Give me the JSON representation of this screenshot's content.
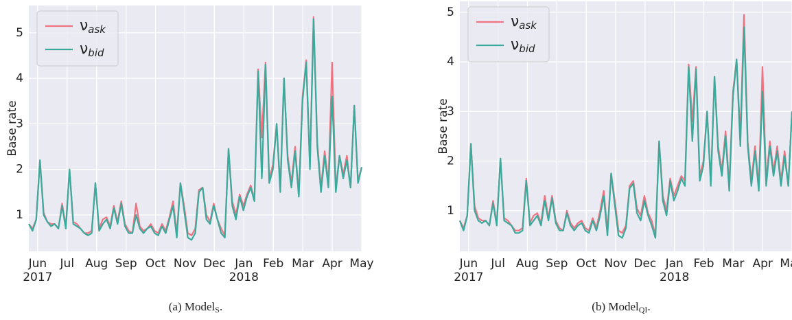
{
  "chart_data": [
    {
      "type": "line",
      "ylabel": "Base rate",
      "caption": "(a) Model",
      "caption_sub": "S",
      "caption_end": ".",
      "xlim": [
        -0.3,
        11.0
      ],
      "xticks": [
        {
          "value": 0,
          "label": "Jun"
        },
        {
          "value": 1,
          "label": "Jul"
        },
        {
          "value": 2,
          "label": "Aug"
        },
        {
          "value": 3,
          "label": "Sep"
        },
        {
          "value": 4,
          "label": "Oct"
        },
        {
          "value": 5,
          "label": "Nov"
        },
        {
          "value": 6,
          "label": "Dec"
        },
        {
          "value": 7,
          "label": "Jan"
        },
        {
          "value": 8,
          "label": "Feb"
        },
        {
          "value": 9,
          "label": "Mar"
        },
        {
          "value": 10,
          "label": "Apr"
        },
        {
          "value": 11,
          "label": "May"
        }
      ],
      "year_labels": [
        {
          "value": 0,
          "label": "2017"
        },
        {
          "value": 7,
          "label": "2018"
        }
      ],
      "ylim": [
        0.2,
        5.6
      ],
      "yticks": [
        1,
        2,
        3,
        4,
        5
      ],
      "grid": true,
      "legend": "upper left",
      "series": [
        {
          "name": "ν",
          "sub": "ask",
          "color": "#f07382",
          "values": [
            0.8,
            0.7,
            0.9,
            2.2,
            1.05,
            0.85,
            0.8,
            0.8,
            0.7,
            1.25,
            0.75,
            2.0,
            0.85,
            0.8,
            0.7,
            0.6,
            0.6,
            0.65,
            1.7,
            0.7,
            0.9,
            0.95,
            0.75,
            1.2,
            0.85,
            1.3,
            0.8,
            0.65,
            0.6,
            1.25,
            0.75,
            0.65,
            0.7,
            0.8,
            0.65,
            0.6,
            0.8,
            0.65,
            0.95,
            1.3,
            0.6,
            1.7,
            1.2,
            0.6,
            0.55,
            0.7,
            1.55,
            1.6,
            1.0,
            0.85,
            1.25,
            0.9,
            0.7,
            0.55,
            2.45,
            1.3,
            1.0,
            1.45,
            1.2,
            1.45,
            1.65,
            1.35,
            4.2,
            2.7,
            4.35,
            1.8,
            2.1,
            3.0,
            1.6,
            4.0,
            2.3,
            1.7,
            2.5,
            1.45,
            3.6,
            4.4,
            2.1,
            5.35,
            2.6,
            1.6,
            2.4,
            1.7,
            4.35,
            1.6,
            2.3,
            1.9,
            2.3,
            1.6,
            3.4,
            1.75,
            2.05
          ]
        },
        {
          "name": "ν",
          "sub": "bid",
          "color": "#3aaa9c",
          "values": [
            0.8,
            0.65,
            0.9,
            2.2,
            1.0,
            0.85,
            0.75,
            0.8,
            0.7,
            1.2,
            0.7,
            2.0,
            0.8,
            0.75,
            0.7,
            0.6,
            0.55,
            0.6,
            1.7,
            0.65,
            0.8,
            0.9,
            0.7,
            1.15,
            0.8,
            1.25,
            0.75,
            0.6,
            0.6,
            1.0,
            0.7,
            0.6,
            0.7,
            0.75,
            0.6,
            0.55,
            0.75,
            0.6,
            0.9,
            1.2,
            0.5,
            1.7,
            1.1,
            0.5,
            0.45,
            0.6,
            1.5,
            1.6,
            0.9,
            0.8,
            1.2,
            0.9,
            0.6,
            0.5,
            2.45,
            1.2,
            0.9,
            1.4,
            1.1,
            1.4,
            1.6,
            1.3,
            4.15,
            1.8,
            4.3,
            1.7,
            2.0,
            3.0,
            1.5,
            4.0,
            2.2,
            1.6,
            2.4,
            1.4,
            3.5,
            4.35,
            2.0,
            5.3,
            2.5,
            1.5,
            2.3,
            1.6,
            3.6,
            1.5,
            2.3,
            1.8,
            2.2,
            1.6,
            3.4,
            1.7,
            2.05
          ]
        }
      ]
    },
    {
      "type": "line",
      "ylabel": "Base rate",
      "caption": "(b) Model",
      "caption_sub": "QI",
      "caption_end": ".",
      "xlim": [
        -0.3,
        11.0
      ],
      "xticks": [
        {
          "value": 0,
          "label": "Jun"
        },
        {
          "value": 1,
          "label": "Jul"
        },
        {
          "value": 2,
          "label": "Aug"
        },
        {
          "value": 3,
          "label": "Sep"
        },
        {
          "value": 4,
          "label": "Oct"
        },
        {
          "value": 5,
          "label": "Nov"
        },
        {
          "value": 6,
          "label": "Dec"
        },
        {
          "value": 7,
          "label": "Jan"
        },
        {
          "value": 8,
          "label": "Feb"
        },
        {
          "value": 9,
          "label": "Mar"
        },
        {
          "value": 10,
          "label": "Apr"
        },
        {
          "value": 11,
          "label": "May"
        }
      ],
      "year_labels": [
        {
          "value": 0,
          "label": "2017"
        },
        {
          "value": 7,
          "label": "2018"
        }
      ],
      "ylim": [
        0.18,
        5.22
      ],
      "yticks": [
        1,
        2,
        3,
        4,
        5
      ],
      "grid": true,
      "legend": "upper left",
      "series": [
        {
          "name": "ν",
          "sub": "ask",
          "color": "#f07382",
          "values": [
            0.8,
            0.65,
            0.9,
            2.35,
            1.1,
            0.85,
            0.8,
            0.8,
            0.7,
            1.2,
            0.75,
            2.05,
            0.85,
            0.8,
            0.7,
            0.6,
            0.6,
            0.65,
            1.65,
            0.75,
            0.9,
            0.95,
            0.75,
            1.3,
            0.85,
            1.3,
            0.8,
            0.65,
            0.6,
            1.0,
            0.75,
            0.65,
            0.75,
            0.8,
            0.65,
            0.6,
            0.85,
            0.65,
            1.0,
            1.4,
            0.6,
            1.75,
            1.2,
            0.6,
            0.55,
            0.7,
            1.5,
            1.6,
            1.05,
            0.9,
            1.3,
            0.95,
            0.8,
            0.5,
            2.4,
            1.3,
            1.0,
            1.65,
            1.3,
            1.5,
            1.7,
            1.6,
            3.95,
            2.8,
            3.9,
            1.7,
            2.0,
            3.0,
            1.6,
            3.7,
            2.3,
            1.8,
            2.6,
            1.5,
            3.4,
            4.05,
            2.5,
            4.95,
            2.4,
            1.6,
            2.3,
            1.5,
            3.9,
            1.6,
            2.4,
            1.8,
            2.3,
            1.6,
            2.2,
            1.5,
            3.0
          ]
        },
        {
          "name": "ν",
          "sub": "bid",
          "color": "#3aaa9c",
          "values": [
            0.8,
            0.6,
            0.9,
            2.35,
            1.0,
            0.8,
            0.75,
            0.8,
            0.7,
            1.15,
            0.7,
            2.05,
            0.8,
            0.75,
            0.7,
            0.55,
            0.55,
            0.6,
            1.6,
            0.7,
            0.8,
            0.9,
            0.7,
            1.2,
            0.8,
            1.25,
            0.75,
            0.6,
            0.6,
            0.95,
            0.7,
            0.6,
            0.7,
            0.75,
            0.6,
            0.55,
            0.8,
            0.6,
            0.9,
            1.3,
            0.5,
            1.75,
            1.1,
            0.5,
            0.45,
            0.65,
            1.45,
            1.55,
            0.95,
            0.8,
            1.2,
            0.9,
            0.7,
            0.45,
            2.4,
            1.2,
            0.9,
            1.6,
            1.2,
            1.4,
            1.65,
            1.5,
            3.9,
            2.4,
            3.85,
            1.6,
            1.9,
            3.0,
            1.5,
            3.7,
            2.2,
            1.7,
            2.5,
            1.4,
            3.3,
            4.05,
            2.3,
            4.7,
            2.3,
            1.5,
            2.2,
            1.4,
            3.4,
            1.5,
            2.3,
            1.7,
            2.2,
            1.5,
            2.1,
            1.5,
            3.0
          ]
        }
      ]
    }
  ]
}
